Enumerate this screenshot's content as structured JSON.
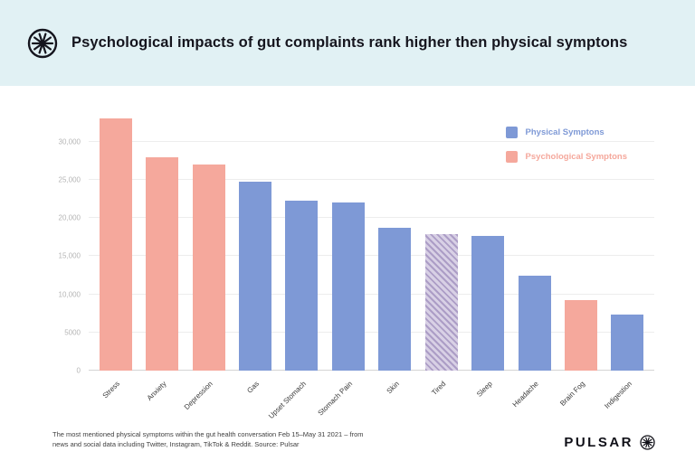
{
  "header": {
    "title": "Psychological impacts of gut complaints rank higher then physical symptons"
  },
  "theme": {
    "header_bg": "#E1F1F4",
    "title_color": "#15151E"
  },
  "icons": {
    "header_logo": "pulsar-asterisk",
    "brand_mark": "pulsar-asterisk"
  },
  "legend": {
    "physical": {
      "label": "Physical Symptons",
      "color": "#7E99D6"
    },
    "psychological": {
      "label": "Psychological Symptons",
      "color": "#F5A89C"
    }
  },
  "chart_data": {
    "type": "bar",
    "title": "Psychological impacts of gut complaints rank higher then physical symptons",
    "categories": [
      "Stress",
      "Anxiety",
      "Depression",
      "Gas",
      "Upset Stomach",
      "Stomach Pain",
      "Skin",
      "Tired",
      "Sleep",
      "Headache",
      "Brain Fog",
      "Indigestion"
    ],
    "values": [
      33000,
      28000,
      27000,
      24800,
      22300,
      22000,
      18700,
      17900,
      17600,
      12400,
      9200,
      7300
    ],
    "bar_groups": [
      "psychological",
      "psychological",
      "psychological",
      "physical",
      "physical",
      "physical",
      "physical",
      "mixed",
      "physical",
      "physical",
      "psychological",
      "physical"
    ],
    "colors": {
      "physical": "#7E99D6",
      "psychological": "#F5A89C",
      "mixed_base": "#D8D0E5",
      "mixed_stripe": "#AC9DC6"
    },
    "xlabel": "",
    "ylabel": "",
    "ylim": [
      0,
      34000
    ],
    "yticks": [
      {
        "value": 0,
        "label": "0"
      },
      {
        "value": 5000,
        "label": "5000"
      },
      {
        "value": 10000,
        "label": "10,000"
      },
      {
        "value": 15000,
        "label": "15,000"
      },
      {
        "value": 20000,
        "label": "20,000"
      },
      {
        "value": 25000,
        "label": "25,000"
      },
      {
        "value": 30000,
        "label": "30,000"
      }
    ],
    "grid": true,
    "legend_position": "top-right"
  },
  "footer": {
    "caption": "The most mentioned physical symptoms within the gut health conversation Feb 15–May 31 2021 – from news and social data including Twitter, Instagram, TikTok & Reddit. Source: Pulsar",
    "brand": "PULSAR"
  }
}
